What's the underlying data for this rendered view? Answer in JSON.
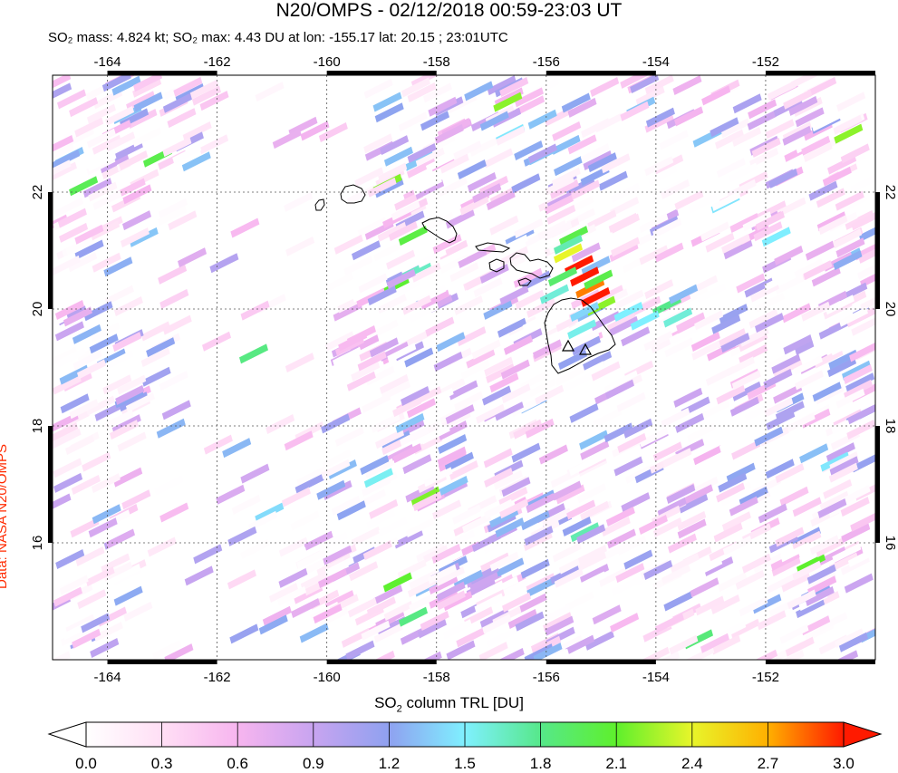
{
  "title": "N20/OMPS - 02/12/2018 00:59-23:03 UT",
  "subtitle": "SO₂ mass: 4.824 kt; SO₂ max: 4.43 DU at lon: -155.17 lat: 20.15 ; 23:01UTC",
  "credit": "Data: NASA N20/OMPS",
  "colorbar": {
    "title_prefix": "SO",
    "title_sub": "2",
    "title_suffix": " column TRL [DU]",
    "ticks": [
      "0.0",
      "0.3",
      "0.6",
      "0.9",
      "1.2",
      "1.5",
      "1.8",
      "2.1",
      "2.4",
      "2.7",
      "3.0"
    ],
    "min": 0.0,
    "max": 3.0,
    "colors": [
      "#ffffff",
      "#ffdff5",
      "#f7b5ef",
      "#c8a4f0",
      "#8fa1f0",
      "#7ff0ff",
      "#56e88a",
      "#5ef02c",
      "#e8f52a",
      "#ffb000",
      "#ff1a00"
    ]
  },
  "map": {
    "lon_range": [
      -165,
      -150
    ],
    "lat_range": [
      14,
      24
    ],
    "lon_ticks": [
      -164,
      -162,
      -160,
      -158,
      -156,
      -154,
      -152
    ],
    "lat_ticks": [
      16,
      18,
      20,
      22
    ],
    "grid": "dotted",
    "volcano_markers": [
      "Mauna Loa",
      "Kilauea"
    ]
  }
}
